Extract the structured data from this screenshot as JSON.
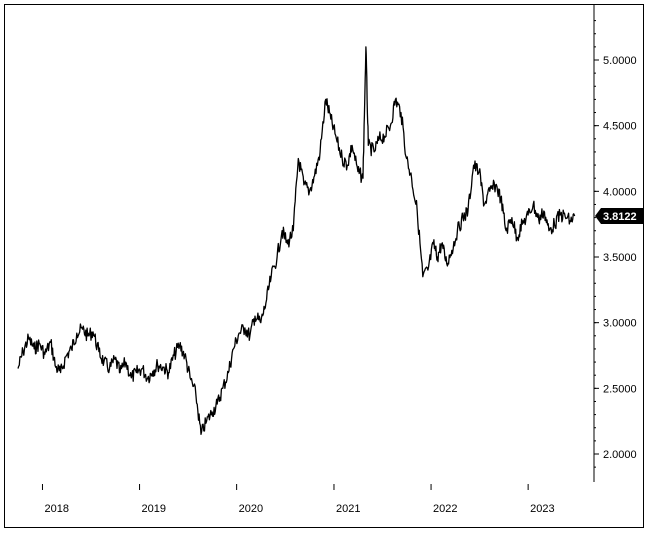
{
  "chart_data": {
    "type": "line",
    "title": "",
    "xlabel": "",
    "ylabel": "",
    "y_axis_position": "right",
    "grid": false,
    "ylim": [
      1.8,
      5.4
    ],
    "xlim": [
      "2017-10-01",
      "2023-07-15"
    ],
    "y_ticks": [
      {
        "value": 2.0,
        "label": "2.0000"
      },
      {
        "value": 2.5,
        "label": "2.5000"
      },
      {
        "value": 3.0,
        "label": "3.0000"
      },
      {
        "value": 3.5,
        "label": "3.5000"
      },
      {
        "value": 4.0,
        "label": "4.0000"
      },
      {
        "value": 4.5,
        "label": "4.5000"
      },
      {
        "value": 5.0,
        "label": "5.0000"
      }
    ],
    "x_ticks": [
      {
        "value": "2018-01-01",
        "label": "2018"
      },
      {
        "value": "2019-01-01",
        "label": "2019"
      },
      {
        "value": "2020-01-01",
        "label": "2020"
      },
      {
        "value": "2021-01-01",
        "label": "2021"
      },
      {
        "value": "2022-01-01",
        "label": "2022"
      },
      {
        "value": "2023-01-01",
        "label": "2023"
      }
    ],
    "last_value_label": "3.8122",
    "last_value": 3.8122,
    "line_color": "#000000",
    "series": [
      {
        "x": [
          "2017-10-01",
          "2017-10-20",
          "2017-11-10",
          "2017-12-01",
          "2017-12-20",
          "2018-01-10",
          "2018-02-01",
          "2018-02-20",
          "2018-03-10",
          "2018-04-01",
          "2018-04-20",
          "2018-05-10",
          "2018-06-01",
          "2018-06-20",
          "2018-07-10",
          "2018-08-01",
          "2018-08-20",
          "2018-09-10",
          "2018-10-01",
          "2018-10-20",
          "2018-11-10",
          "2018-12-01",
          "2018-12-20",
          "2019-01-10",
          "2019-02-01",
          "2019-02-20",
          "2019-03-10",
          "2019-04-01",
          "2019-04-20",
          "2019-05-10",
          "2019-06-01",
          "2019-06-20",
          "2019-07-10",
          "2019-08-01",
          "2019-08-20",
          "2019-09-10",
          "2019-10-01",
          "2019-10-20",
          "2019-11-10",
          "2019-12-01",
          "2019-12-20",
          "2020-01-10",
          "2020-02-01",
          "2020-02-20",
          "2020-03-10",
          "2020-04-01",
          "2020-04-20",
          "2020-05-10",
          "2020-06-01",
          "2020-06-20",
          "2020-07-10",
          "2020-08-01",
          "2020-08-20",
          "2020-09-10",
          "2020-10-01",
          "2020-10-20",
          "2020-11-10",
          "2020-12-01",
          "2020-12-20",
          "2021-01-10",
          "2021-02-01",
          "2021-02-20",
          "2021-03-10",
          "2021-04-01",
          "2021-04-20",
          "2021-05-01",
          "2021-05-10",
          "2021-06-01",
          "2021-06-20",
          "2021-07-10",
          "2021-08-01",
          "2021-08-20",
          "2021-09-10",
          "2021-10-01",
          "2021-10-20",
          "2021-11-10",
          "2021-12-01",
          "2021-12-20",
          "2022-01-10",
          "2022-01-25",
          "2022-02-10",
          "2022-03-01",
          "2022-03-20",
          "2022-04-10",
          "2022-05-01",
          "2022-05-20",
          "2022-06-10",
          "2022-07-01",
          "2022-07-20",
          "2022-08-10",
          "2022-09-01",
          "2022-09-20",
          "2022-10-10",
          "2022-11-01",
          "2022-11-20",
          "2022-12-10",
          "2023-01-01",
          "2023-01-20",
          "2023-02-10",
          "2023-03-01",
          "2023-03-20",
          "2023-04-10",
          "2023-05-01",
          "2023-05-20",
          "2023-06-10",
          "2023-06-25"
        ],
        "y": [
          2.65,
          2.78,
          2.88,
          2.8,
          2.84,
          2.76,
          2.85,
          2.66,
          2.62,
          2.75,
          2.8,
          2.92,
          2.95,
          2.9,
          2.93,
          2.78,
          2.7,
          2.65,
          2.72,
          2.62,
          2.7,
          2.58,
          2.62,
          2.65,
          2.58,
          2.63,
          2.68,
          2.66,
          2.62,
          2.75,
          2.83,
          2.75,
          2.58,
          2.45,
          2.15,
          2.25,
          2.32,
          2.38,
          2.5,
          2.62,
          2.8,
          2.92,
          2.96,
          2.9,
          3.05,
          3.0,
          3.15,
          3.35,
          3.5,
          3.7,
          3.6,
          3.7,
          4.25,
          4.05,
          4.0,
          4.12,
          4.3,
          4.7,
          4.55,
          4.4,
          4.25,
          4.2,
          4.35,
          4.15,
          4.1,
          5.1,
          4.35,
          4.3,
          4.4,
          4.42,
          4.5,
          4.7,
          4.6,
          4.25,
          4.1,
          3.85,
          3.35,
          3.4,
          3.6,
          3.5,
          3.6,
          3.45,
          3.55,
          3.7,
          3.8,
          3.85,
          4.2,
          4.15,
          3.9,
          4.0,
          4.05,
          3.95,
          3.7,
          3.8,
          3.65,
          3.75,
          3.82,
          3.9,
          3.78,
          3.85,
          3.7,
          3.75,
          3.82,
          3.81,
          3.77,
          3.8122
        ]
      }
    ]
  }
}
